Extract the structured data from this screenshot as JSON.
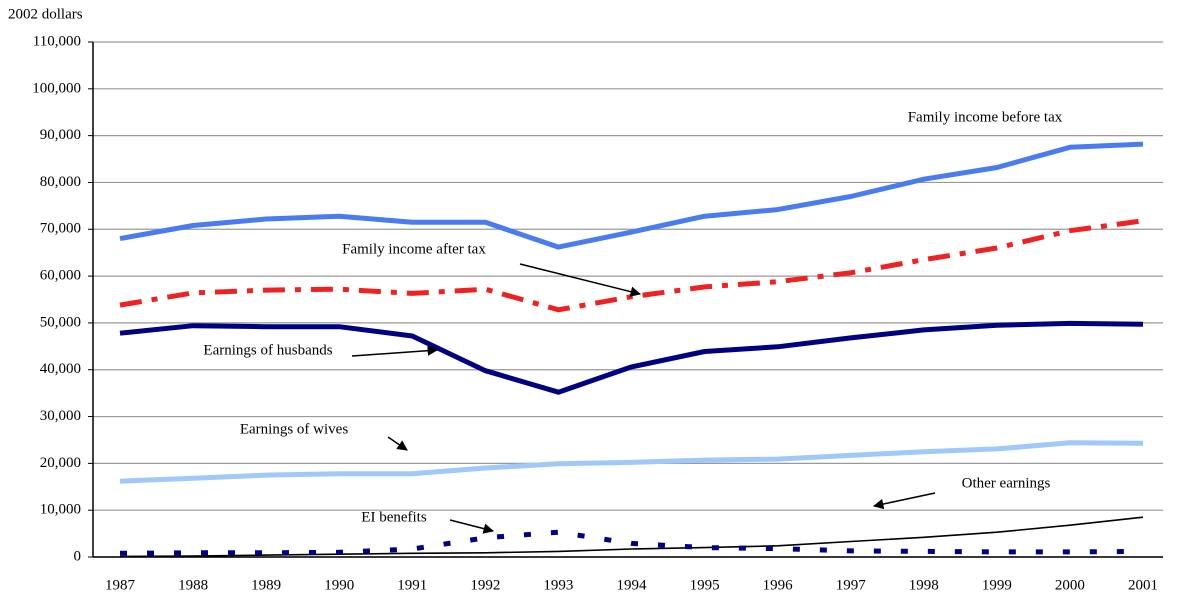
{
  "chart_data": {
    "type": "line",
    "y_label": "2002 dollars",
    "categories": [
      "1987",
      "1988",
      "1989",
      "1990",
      "1991",
      "1992",
      "1993",
      "1994",
      "1995",
      "1996",
      "1997",
      "1998",
      "1999",
      "2000",
      "2001"
    ],
    "ylim": [
      0,
      110000
    ],
    "yticks": [
      0,
      {
        "value": 10000,
        "label": "10,000"
      },
      {
        "value": 20000,
        "label": "20,000"
      },
      {
        "value": 30000,
        "label": "30,000"
      },
      {
        "value": 40000,
        "label": "40,000"
      },
      {
        "value": 50000,
        "label": "50,000"
      },
      {
        "value": 60000,
        "label": "60,000"
      },
      {
        "value": 70000,
        "label": "70,000"
      },
      {
        "value": 80000,
        "label": "80,000"
      },
      {
        "value": 90000,
        "label": "90,000"
      },
      {
        "value": 100000,
        "label": "100,000"
      },
      {
        "value": 110000,
        "label": "110,000"
      }
    ],
    "grid": true,
    "series": [
      {
        "name": "Family income before tax",
        "color": "#4a7bef",
        "dash": "solid",
        "weight": "thick",
        "values": [
          68000,
          70800,
          72200,
          72800,
          71500,
          71500,
          66200,
          69400,
          72800,
          74200,
          77000,
          80700,
          83200,
          87500,
          88200
        ]
      },
      {
        "name": "Family income after tax",
        "color": "#ee2222",
        "dash": "dash-dot",
        "weight": "thick",
        "values": [
          53800,
          56400,
          57000,
          57200,
          56300,
          57200,
          52800,
          55600,
          57700,
          58800,
          60700,
          63500,
          66000,
          69700,
          71800
        ]
      },
      {
        "name": "Earnings of husbands",
        "color": "#000080",
        "dash": "solid",
        "weight": "thick",
        "values": [
          47800,
          49400,
          49200,
          49200,
          47200,
          39800,
          35200,
          40600,
          43900,
          44900,
          46800,
          48500,
          49500,
          49900,
          49700
        ]
      },
      {
        "name": "Earnings of wives",
        "color": "#a0c8f8",
        "dash": "solid",
        "weight": "thick",
        "values": [
          16200,
          16800,
          17500,
          17800,
          17800,
          19000,
          19900,
          20200,
          20700,
          20900,
          21700,
          22500,
          23100,
          24400,
          24300
        ]
      },
      {
        "name": "Other earnings",
        "color": "#000000",
        "dash": "solid",
        "weight": "thin",
        "values": [
          100,
          200,
          400,
          600,
          800,
          900,
          1200,
          1700,
          2000,
          2400,
          3300,
          4200,
          5300,
          6800,
          8500
        ]
      },
      {
        "name": "EI benefits",
        "color": "#000080",
        "dash": "dotted",
        "weight": "thick",
        "values": [
          800,
          900,
          900,
          1000,
          1700,
          4100,
          5300,
          2900,
          2000,
          1800,
          1300,
          1200,
          1100,
          1100,
          1200
        ]
      }
    ]
  }
}
